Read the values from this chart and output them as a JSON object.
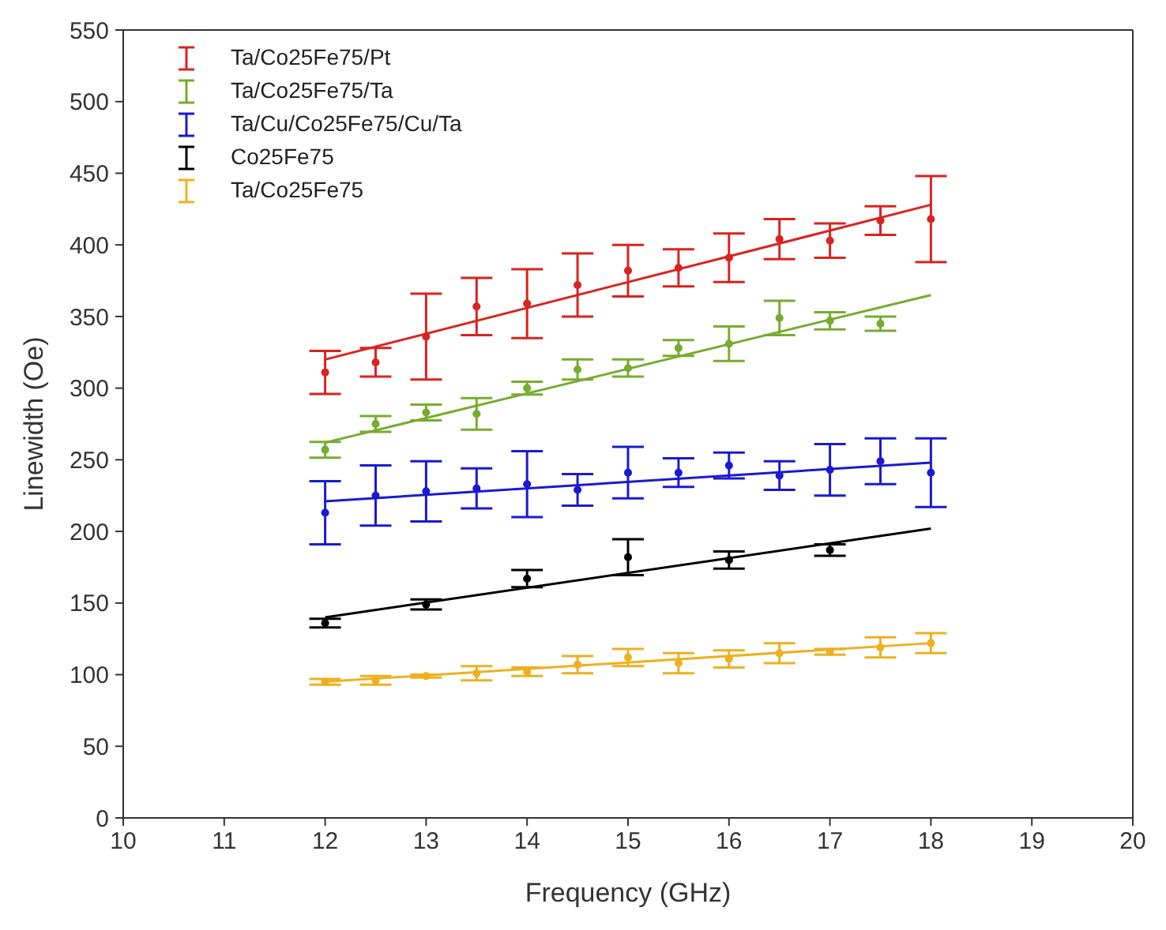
{
  "chart_data": {
    "type": "scatter",
    "xlabel": "Frequency (GHz)",
    "ylabel": "Linewidth (Oe)",
    "xlim": [
      10,
      20
    ],
    "xticks": [
      10,
      11,
      12,
      13,
      14,
      15,
      16,
      17,
      18,
      19,
      20
    ],
    "ylim": [
      0,
      550
    ],
    "yticks": [
      0,
      50,
      100,
      150,
      200,
      250,
      300,
      350,
      400,
      450,
      500,
      550
    ],
    "grid": false,
    "legend": "top left",
    "series": [
      {
        "name": "Ta/Co25Fe75/Pt",
        "color": "#d9231f",
        "x": [
          12,
          12.5,
          13,
          13.5,
          14,
          14.5,
          15,
          15.5,
          16,
          16.5,
          17,
          17.5,
          18
        ],
        "values": [
          311,
          318,
          336,
          357,
          359,
          372,
          382,
          384,
          391,
          404,
          403,
          417,
          418
        ],
        "errors": [
          15,
          10,
          30,
          20,
          24,
          22,
          18,
          13,
          17,
          14,
          12,
          10,
          30
        ]
      },
      {
        "name": "Ta/Co25Fe75/Ta",
        "color": "#77ac30",
        "x": [
          12,
          12.5,
          13,
          13.5,
          14,
          14.5,
          15,
          15.5,
          16,
          16.5,
          17,
          17.5
        ],
        "values": [
          257,
          275,
          283,
          282,
          300,
          313,
          314,
          328,
          331,
          349,
          347,
          345
        ],
        "errors": [
          5.5,
          5.5,
          5.5,
          11,
          4.5,
          7,
          6,
          5.5,
          12,
          12,
          6,
          5
        ]
      },
      {
        "name": "Ta/Cu/Co25Fe75/Cu/Ta",
        "color": "#1a1ad0",
        "x": [
          12,
          12.5,
          13,
          13.5,
          14,
          14.5,
          15,
          15.5,
          16,
          16.5,
          17,
          17.5,
          18
        ],
        "values": [
          213,
          225,
          228,
          230,
          233,
          229,
          241,
          241,
          246,
          239,
          243,
          249,
          241
        ],
        "errors": [
          22,
          21,
          21,
          14,
          23,
          11,
          18,
          10,
          9,
          10,
          18,
          16,
          24
        ]
      },
      {
        "name": "Co25Fe75",
        "color": "#000000",
        "x": [
          12,
          13,
          14,
          15,
          16,
          17
        ],
        "values": [
          136,
          149,
          167,
          182,
          180,
          187
        ],
        "errors": [
          3,
          3.5,
          6,
          12.5,
          6,
          4
        ]
      },
      {
        "name": "Ta/Co25Fe75",
        "color": "#edb120",
        "x": [
          12,
          12.5,
          13,
          13.5,
          14,
          14.5,
          15,
          15.5,
          16,
          16.5,
          17,
          17.5,
          18
        ],
        "values": [
          95,
          96,
          99,
          101,
          102,
          107,
          112,
          108,
          111,
          115,
          116,
          119,
          122
        ],
        "errors": [
          2,
          3,
          1,
          5,
          3,
          6,
          6,
          7,
          6,
          7,
          2,
          7,
          7
        ]
      },
      {
        "type": "line",
        "color": "#d9231f",
        "x": [
          12,
          18
        ],
        "values": [
          320,
          428
        ]
      },
      {
        "type": "line",
        "color": "#77ac30",
        "x": [
          12,
          18
        ],
        "values": [
          262,
          365
        ]
      },
      {
        "type": "line",
        "color": "#1a1ad0",
        "x": [
          12,
          18
        ],
        "values": [
          221,
          248
        ]
      },
      {
        "type": "line",
        "color": "#000000",
        "x": [
          12,
          18
        ],
        "values": [
          140,
          202
        ]
      },
      {
        "type": "line",
        "color": "#edb120",
        "x": [
          12,
          18
        ],
        "values": [
          95,
          122
        ]
      }
    ]
  }
}
